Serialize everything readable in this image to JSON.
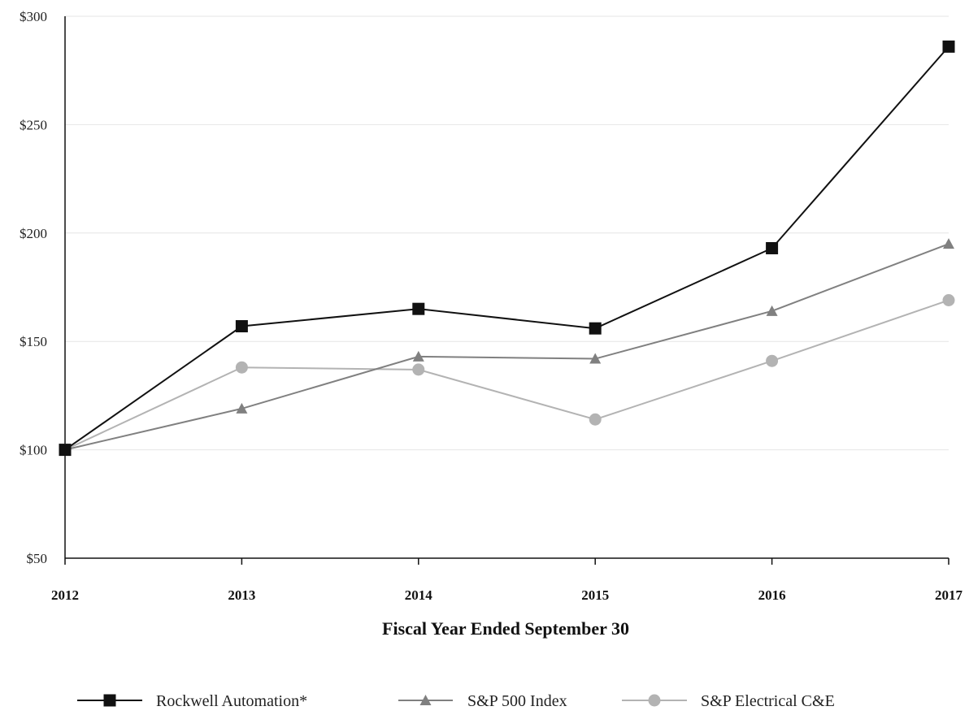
{
  "chart_data": {
    "type": "line",
    "title": "",
    "xlabel": "Fiscal Year Ended September 30",
    "ylabel": "",
    "categories": [
      "2012",
      "2013",
      "2014",
      "2015",
      "2016",
      "2017"
    ],
    "y_ticks": [
      "$50",
      "$100",
      "$150",
      "$200",
      "$250",
      "$300"
    ],
    "y_tick_values": [
      50,
      100,
      150,
      200,
      250,
      300
    ],
    "ylim": [
      50,
      300
    ],
    "grid": true,
    "legend_position": "bottom",
    "series": [
      {
        "name": "Rockwell Automation*",
        "values": [
          100,
          157,
          165,
          156,
          193,
          286
        ],
        "color": "#111111",
        "marker": "square"
      },
      {
        "name": "S&P 500 Index",
        "values": [
          100,
          119,
          143,
          142,
          164,
          195
        ],
        "color": "#808080",
        "marker": "triangle"
      },
      {
        "name": "S&P Electrical C&E",
        "values": [
          100,
          138,
          137,
          114,
          141,
          169
        ],
        "color": "#b3b3b3",
        "marker": "circle"
      }
    ]
  }
}
